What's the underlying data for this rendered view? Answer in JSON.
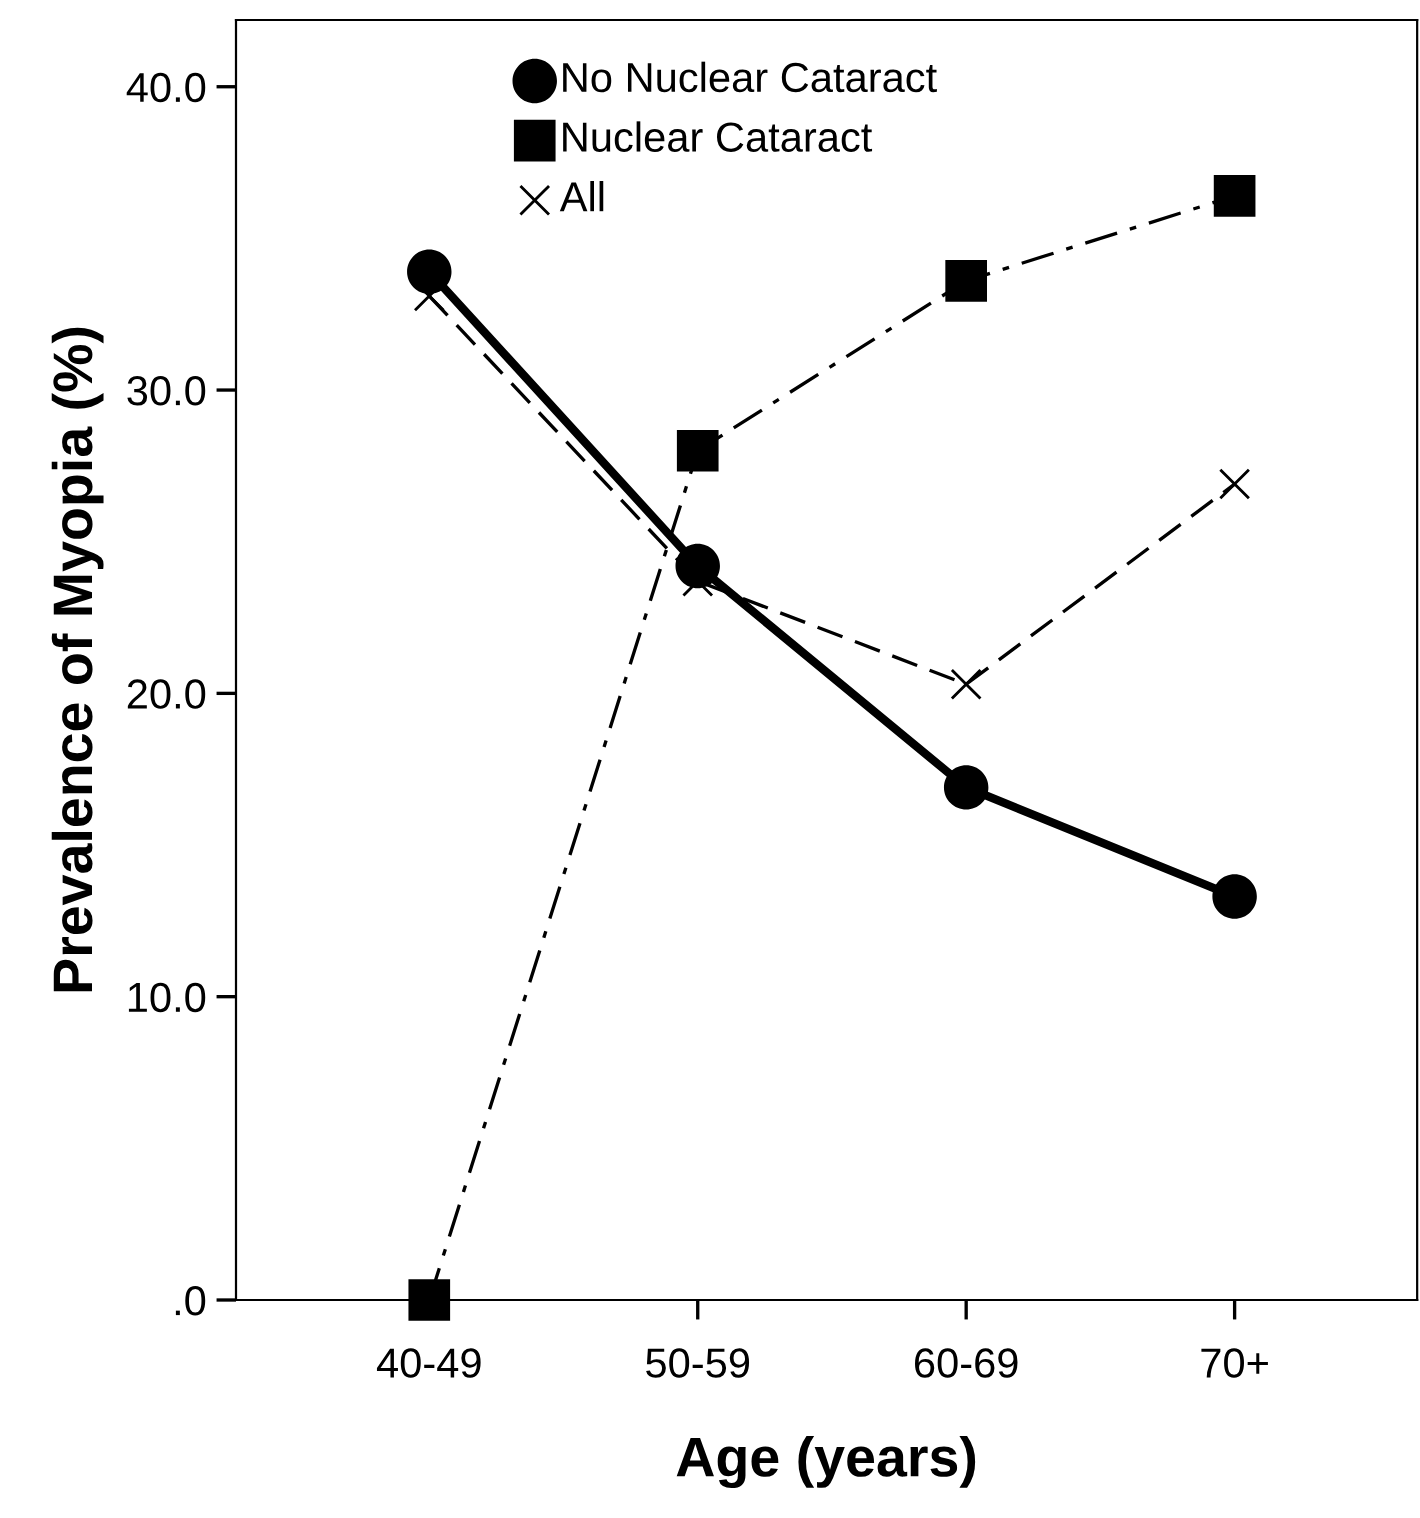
{
  "chart_data": {
    "type": "line",
    "xlabel": "Age (years)",
    "ylabel": "Prevalence of Myopia (%)",
    "categories": [
      "40-49",
      "50-59",
      "60-69",
      "70+"
    ],
    "series": [
      {
        "name": "No Nuclear Cataract",
        "color": "#000000",
        "marker": "circle",
        "line_style": "solid",
        "values": [
          33.9,
          24.2,
          16.9,
          13.3
        ]
      },
      {
        "name": "Nuclear Cataract",
        "color": "#000000",
        "marker": "square",
        "line_style": "dashdot",
        "values": [
          0.0,
          28.0,
          33.6,
          36.4
        ]
      },
      {
        "name": "All",
        "color": "#000000",
        "marker": "cross",
        "line_style": "dashed",
        "values": [
          33.1,
          23.7,
          20.3,
          26.9
        ]
      }
    ],
    "ylim": [
      0,
      42.2
    ],
    "yticks": [
      {
        "value": 0,
        "label": ".0"
      },
      {
        "value": 10,
        "label": "10.0"
      },
      {
        "value": 20,
        "label": "20.0"
      },
      {
        "value": 30,
        "label": "30.0"
      },
      {
        "value": 40,
        "label": "40.0"
      }
    ],
    "legend": "top",
    "grid": false
  }
}
